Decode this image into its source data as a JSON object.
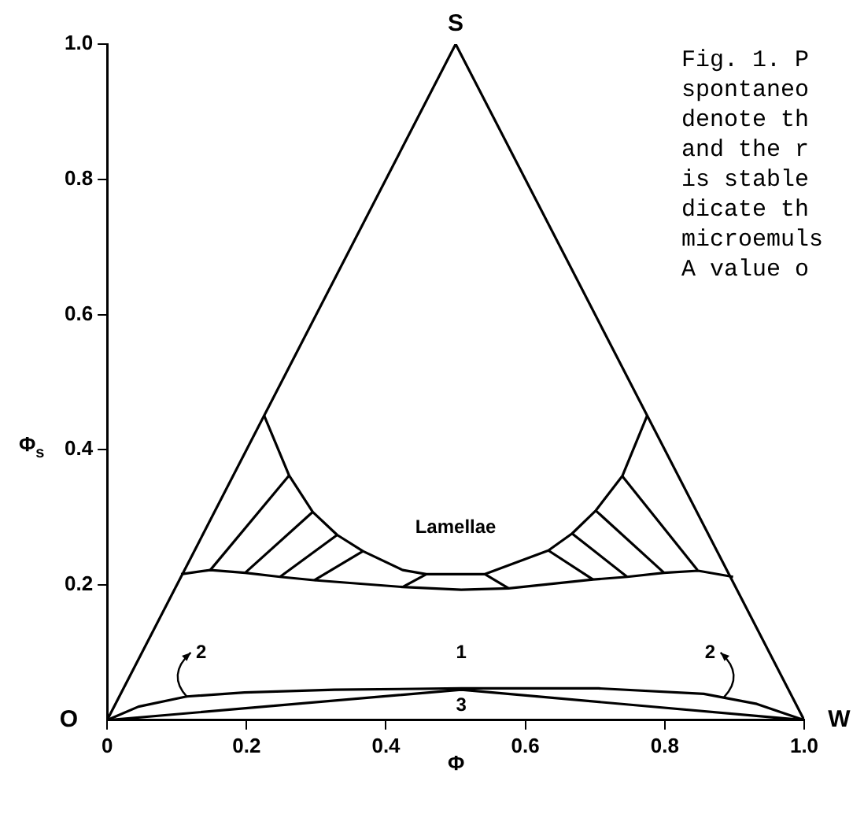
{
  "chart_data": {
    "type": "line",
    "xlabel": "Φ",
    "ylabel": "Φ$_{s}$",
    "xlim": [
      0,
      1
    ],
    "ylim": [
      0,
      1
    ],
    "xticks": [
      0,
      0.2,
      0.4,
      0.6,
      0.8,
      {
        "value": 1,
        "label": "1.0"
      }
    ],
    "yticks": [
      0.2,
      0.4,
      0.6,
      0.8,
      {
        "value": 1,
        "label": "1.0"
      }
    ],
    "grid": false,
    "legend": false,
    "marker": "none",
    "line_style": "solid",
    "series": [
      {
        "color": "#000000",
        "x": [
          0,
          0.5,
          1
        ],
        "values": [
          0,
          1,
          0
        ]
      },
      {
        "color": "#000000",
        "x": [
          0.225,
          0.261,
          0.295,
          0.33,
          0.367,
          0.424,
          0.458,
          0.508,
          0.542,
          0.633,
          0.667,
          0.701,
          0.739,
          0.775
        ],
        "values": [
          0.451,
          0.362,
          0.308,
          0.274,
          0.25,
          0.222,
          0.216,
          0.216,
          0.216,
          0.251,
          0.276,
          0.31,
          0.361,
          0.451
        ]
      },
      {
        "color": "#000000",
        "x": [
          0.106,
          0.148,
          0.198,
          0.248,
          0.297,
          0.424,
          0.508,
          0.576,
          0.697,
          0.746,
          0.799,
          0.848,
          0.898
        ],
        "values": [
          0.216,
          0.222,
          0.218,
          0.212,
          0.207,
          0.197,
          0.193,
          0.195,
          0.208,
          0.212,
          0.218,
          0.221,
          0.212
        ]
      },
      {
        "color": "#000000",
        "x": [
          0.148,
          0.261
        ],
        "values": [
          0.222,
          0.362
        ]
      },
      {
        "color": "#000000",
        "x": [
          0.198,
          0.295
        ],
        "values": [
          0.218,
          0.308
        ]
      },
      {
        "color": "#000000",
        "x": [
          0.248,
          0.33
        ],
        "values": [
          0.212,
          0.274
        ]
      },
      {
        "color": "#000000",
        "x": [
          0.297,
          0.367
        ],
        "values": [
          0.207,
          0.25
        ]
      },
      {
        "color": "#000000",
        "x": [
          0.424,
          0.458
        ],
        "values": [
          0.197,
          0.216
        ]
      },
      {
        "color": "#000000",
        "x": [
          0.542,
          0.576
        ],
        "values": [
          0.216,
          0.195
        ]
      },
      {
        "color": "#000000",
        "x": [
          0.633,
          0.697
        ],
        "values": [
          0.251,
          0.208
        ]
      },
      {
        "color": "#000000",
        "x": [
          0.667,
          0.746
        ],
        "values": [
          0.276,
          0.212
        ]
      },
      {
        "color": "#000000",
        "x": [
          0.701,
          0.799
        ],
        "values": [
          0.31,
          0.218
        ]
      },
      {
        "color": "#000000",
        "x": [
          0.739,
          0.847
        ],
        "values": [
          0.361,
          0.222
        ]
      },
      {
        "color": "#000000",
        "x": [
          0,
          0.045,
          0.114,
          0.197,
          0.326,
          0.508,
          0.705,
          0.856,
          0.932,
          1
        ],
        "values": [
          0,
          0.02,
          0.035,
          0.041,
          0.045,
          0.047,
          0.047,
          0.039,
          0.024,
          0
        ]
      },
      {
        "color": "#000000",
        "x": [
          0,
          0.508,
          1
        ],
        "values": [
          0,
          0.045,
          0
        ]
      }
    ],
    "annotations": [
      "S",
      "O",
      "W",
      "Lamellae",
      "1",
      "2",
      "2",
      "3",
      "Fig. 1. P",
      "spontaneo",
      "denote th",
      "and the r",
      "is stable",
      "dicate th",
      "microemuls",
      "A value o"
    ]
  }
}
